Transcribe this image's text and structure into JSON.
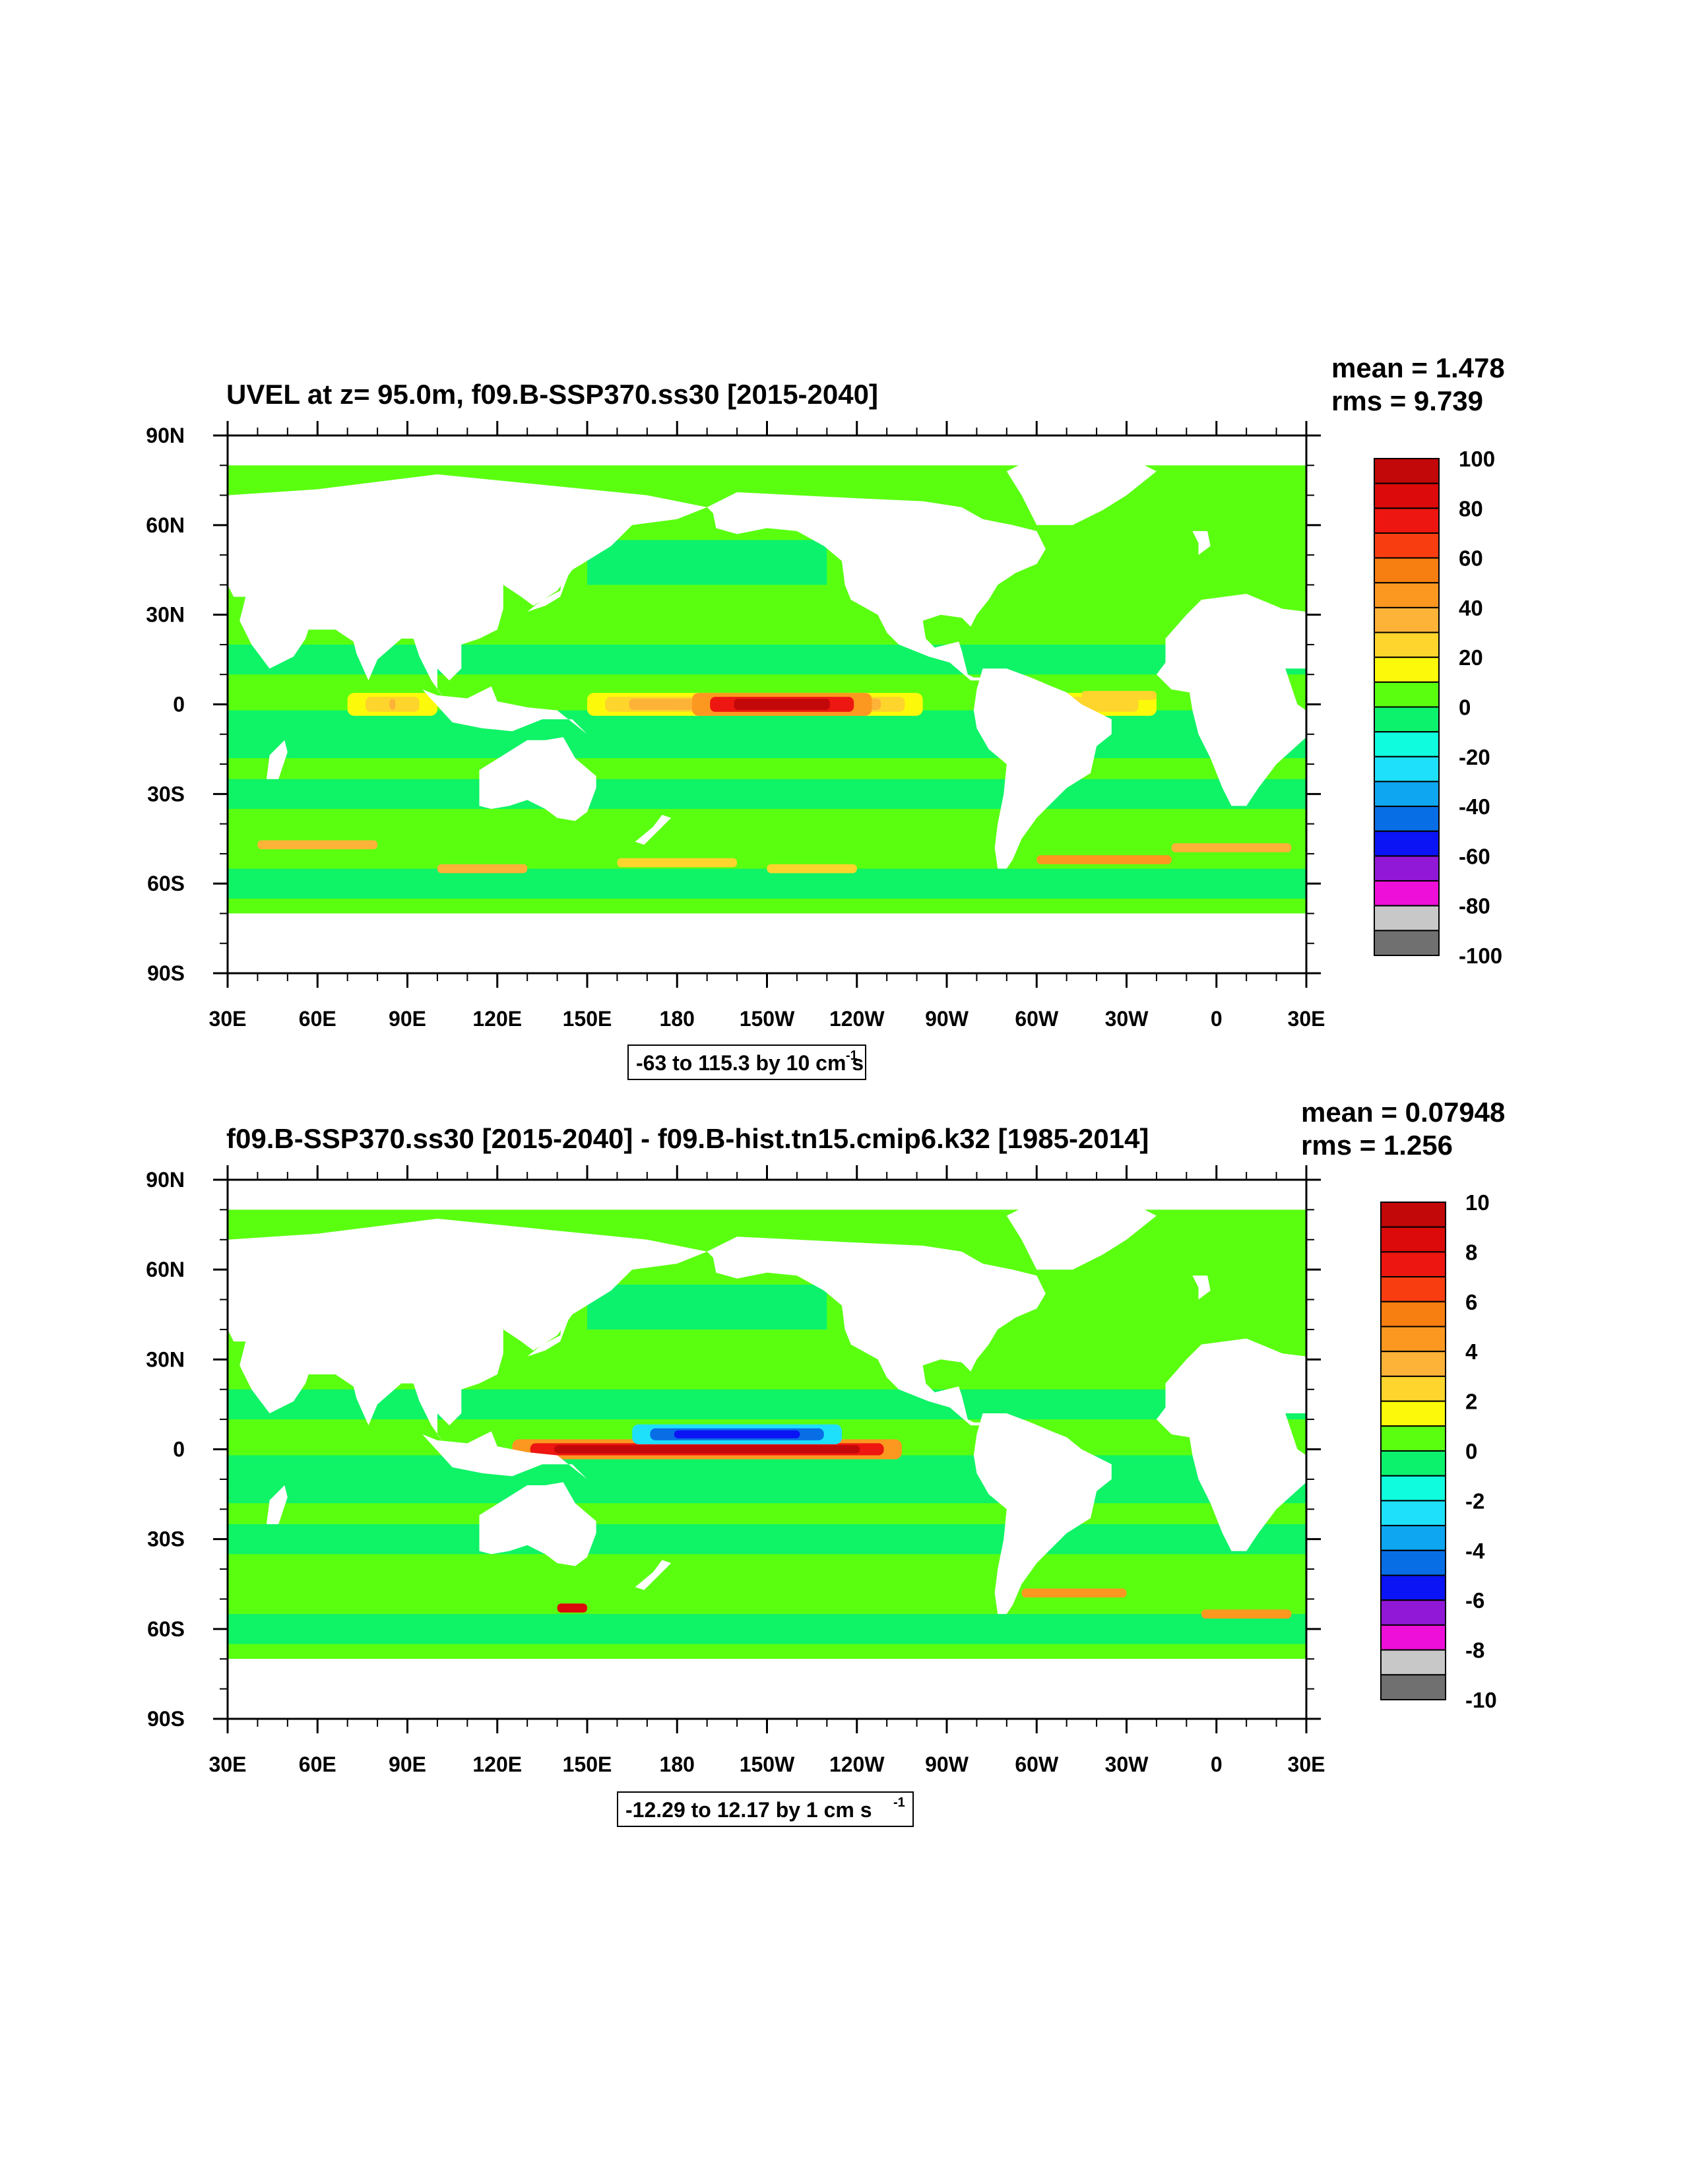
{
  "chart_data": [
    {
      "type": "heatmap",
      "title": "UVEL at z=  95.0m, f09.B-SSP370.ss30 [2015-2040]",
      "stats": {
        "mean": "mean = 1.478",
        "rms": "rms = 9.739"
      },
      "x_ticks": [
        "30E",
        "60E",
        "90E",
        "120E",
        "150E",
        "180",
        "150W",
        "120W",
        "90W",
        "60W",
        "30W",
        "0",
        "30E"
      ],
      "y_ticks": [
        "90N",
        "60N",
        "30N",
        "0",
        "30S",
        "60S",
        "90S"
      ],
      "xlim": [
        30,
        390
      ],
      "ylim": [
        -90,
        90
      ],
      "colorbar": {
        "labels": [
          "100",
          "80",
          "60",
          "40",
          "20",
          "0",
          "-20",
          "-40",
          "-60",
          "-80",
          "-100"
        ],
        "levels": [
          -100,
          -90,
          -80,
          -70,
          -60,
          -50,
          -40,
          -30,
          -20,
          -10,
          0,
          10,
          20,
          30,
          40,
          50,
          60,
          70,
          80,
          90,
          100
        ],
        "colors": [
          "#707070",
          "#c8c8c8",
          "#ee10d8",
          "#9018d6",
          "#0a14f4",
          "#086ee6",
          "#0ea6f0",
          "#1ee0fa",
          "#10fcde",
          "#0cf26c",
          "#5aff10",
          "#fcfa0a",
          "#fdd52c",
          "#fdb238",
          "#fc9820",
          "#f77e10",
          "#f83e10",
          "#ee1610",
          "#dc0a0a",
          "#c20808"
        ]
      },
      "info": "-63 to 115.3 by 10 cm s",
      "info_sup": "-1",
      "features": {
        "equatorial_jets": [
          {
            "lon": [
              70,
              100
            ],
            "lat": 0,
            "value": 40
          },
          {
            "lon": [
              150,
              262
            ],
            "lat": 0,
            "value": 40
          },
          {
            "lon": [
              185,
              245
            ],
            "lat": 0,
            "value": 100
          },
          {
            "lon": [
              305,
              340
            ],
            "lat": 0,
            "value": 30
          }
        ],
        "regions_note": "Ocean-only field; mostly 0 to 10 in Pacific, -10 to 0 in tropical belts, eastward bands in Southern Ocean near 45-55S"
      }
    },
    {
      "type": "heatmap",
      "title": "f09.B-SSP370.ss30 [2015-2040] - f09.B-hist.tn15.cmip6.k32 [1985-2014]",
      "stats": {
        "mean": "mean = 0.07948",
        "rms": "rms = 1.256"
      },
      "x_ticks": [
        "30E",
        "60E",
        "90E",
        "120E",
        "150E",
        "180",
        "150W",
        "120W",
        "90W",
        "60W",
        "30W",
        "0",
        "30E"
      ],
      "y_ticks": [
        "90N",
        "60N",
        "30N",
        "0",
        "30S",
        "60S",
        "90S"
      ],
      "xlim": [
        30,
        390
      ],
      "ylim": [
        -90,
        90
      ],
      "colorbar": {
        "labels": [
          "10",
          "8",
          "6",
          "4",
          "2",
          "0",
          "-2",
          "-4",
          "-6",
          "-8",
          "-10"
        ],
        "levels": [
          -10,
          -9,
          -8,
          -7,
          -6,
          -5,
          -4,
          -3,
          -2,
          -1,
          0,
          1,
          2,
          3,
          4,
          5,
          6,
          7,
          8,
          9,
          10
        ],
        "colors": [
          "#707070",
          "#c8c8c8",
          "#ee10d8",
          "#9018d6",
          "#0a14f4",
          "#086ee6",
          "#0ea6f0",
          "#1ee0fa",
          "#10fcde",
          "#0cf26c",
          "#5aff10",
          "#fcfa0a",
          "#fdd52c",
          "#fdb238",
          "#fc9820",
          "#f77e10",
          "#f83e10",
          "#ee1610",
          "#dc0a0a",
          "#c20808"
        ]
      },
      "info": "-12.29 to 12.17 by 1 cm s",
      "info_sup": "-1",
      "features": {
        "equatorial_anomaly": [
          {
            "lon": [
              125,
              255
            ],
            "lat": 0,
            "value": 10
          },
          {
            "lon": [
              165,
              235
            ],
            "lat": 5,
            "value": -6
          }
        ],
        "regions_note": "Difference field; mostly -1 to 1 with strong positive anomaly along Pacific equator"
      }
    }
  ]
}
